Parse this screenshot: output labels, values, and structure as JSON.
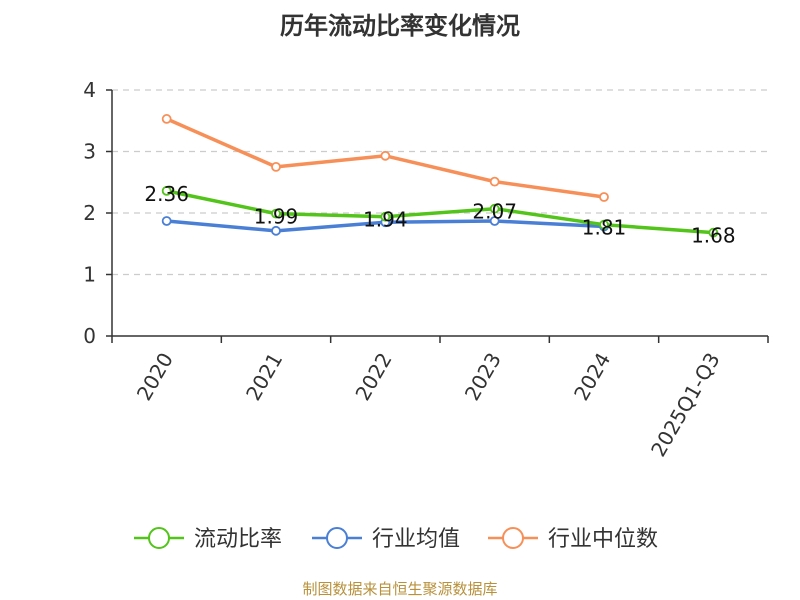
{
  "chart_data": {
    "type": "line",
    "title": "历年流动比率变化情况",
    "categories": [
      "2020",
      "2021",
      "2022",
      "2023",
      "2024",
      "2025Q1-Q3"
    ],
    "ylim": [
      0,
      4
    ],
    "yticks": [
      "0",
      "1",
      "2",
      "3",
      "4"
    ],
    "grid": true,
    "legend_position": "bottom",
    "series": [
      {
        "name": "流动比率",
        "color": "#52c41a",
        "values": [
          2.36,
          1.99,
          1.94,
          2.07,
          1.81,
          1.68
        ],
        "labels": [
          "2.36",
          "1.99",
          "1.94",
          "2.07",
          "1.81",
          "1.68"
        ]
      },
      {
        "name": "行业均值",
        "color": "#4a7fd6",
        "values": [
          1.87,
          1.71,
          1.85,
          1.87,
          1.78,
          null
        ]
      },
      {
        "name": "行业中位数",
        "color": "#f79058",
        "values": [
          3.53,
          2.75,
          2.93,
          2.51,
          2.26,
          null
        ]
      }
    ]
  },
  "source": "制图数据来自恒生聚源数据库"
}
